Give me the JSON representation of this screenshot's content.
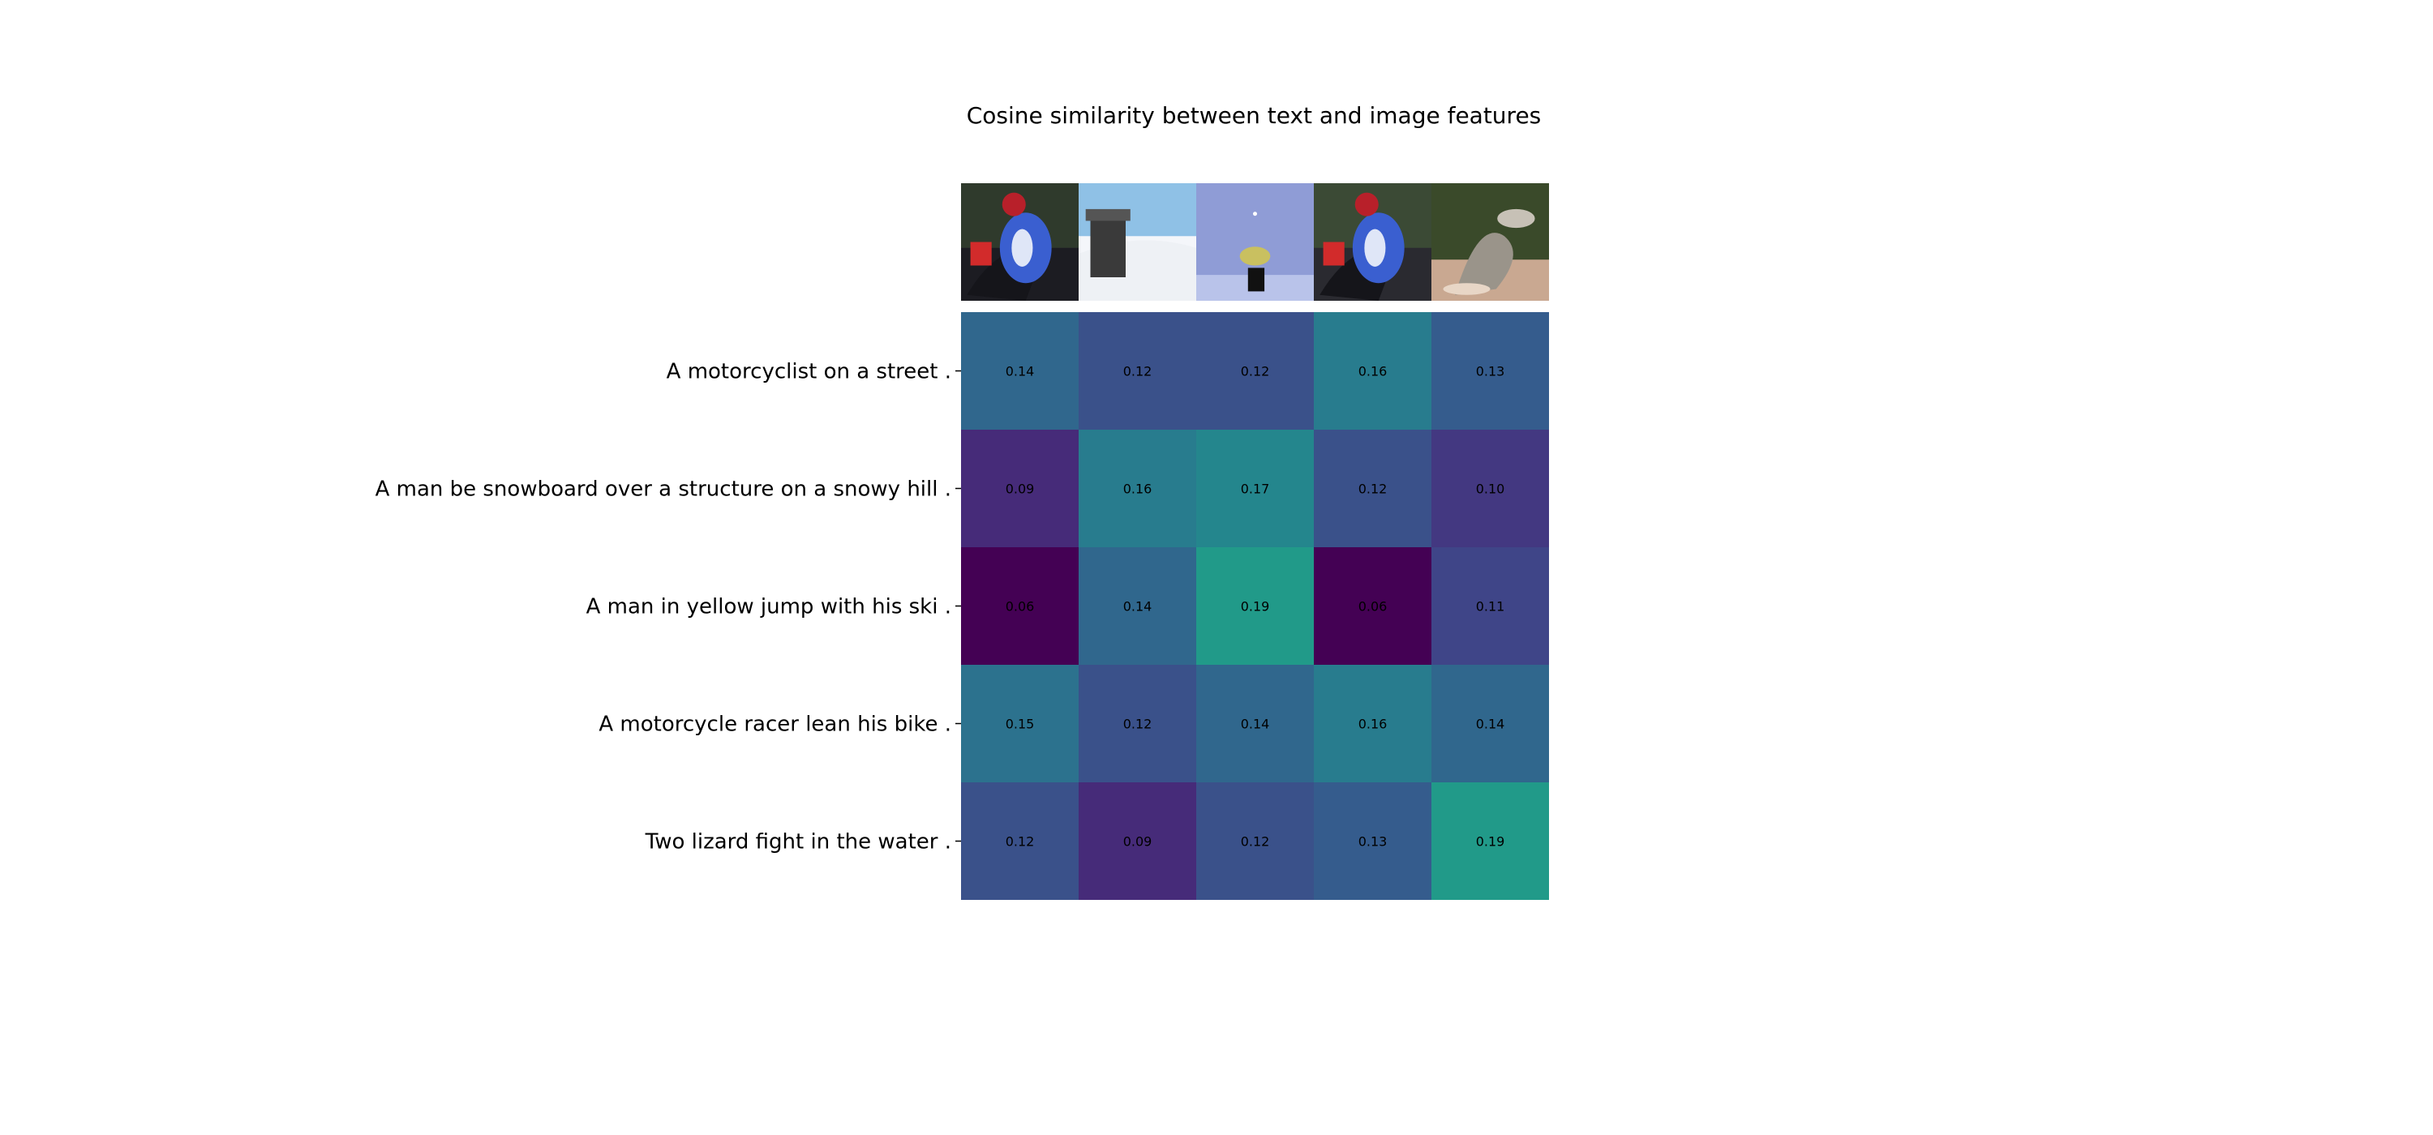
{
  "chart_data": {
    "type": "heatmap",
    "title": "Cosine similarity between text and image features",
    "rows": [
      "A motorcyclist on a street .",
      "A man be snowboard over a structure on a snowy hill .",
      "A man in yellow jump with his ski .",
      "A motorcycle racer lean his bike .",
      "Two lizard fight in the water ."
    ],
    "columns": [
      "motorcycle-image-1",
      "snowboard-structure-image",
      "ski-jumper-image",
      "motorcycle-image-2",
      "lizards-image"
    ],
    "values": [
      [
        0.14,
        0.12,
        0.12,
        0.16,
        0.13
      ],
      [
        0.09,
        0.16,
        0.17,
        0.12,
        0.1
      ],
      [
        0.06,
        0.14,
        0.19,
        0.06,
        0.11
      ],
      [
        0.15,
        0.12,
        0.14,
        0.16,
        0.14
      ],
      [
        0.12,
        0.09,
        0.12,
        0.13,
        0.19
      ]
    ],
    "colormap": "viridis",
    "vmin": 0.06,
    "vmax": 0.3,
    "image_palettes": [
      {
        "sky": "#2f3a2c",
        "ground": "#1c1c22",
        "subject": "#3a5fd0"
      },
      {
        "sky": "#8fc1e6",
        "ground": "#eef1f5",
        "subject": "#3a3a3a"
      },
      {
        "sky": "#8f9cd6",
        "ground": "#b9c3ea",
        "subject": "#c9c060"
      },
      {
        "sky": "#3b4a35",
        "ground": "#2a2a30",
        "subject": "#3a5fd0"
      },
      {
        "sky": "#3a4a2a",
        "ground": "#c9a891",
        "subject": "#9a948a"
      }
    ]
  }
}
